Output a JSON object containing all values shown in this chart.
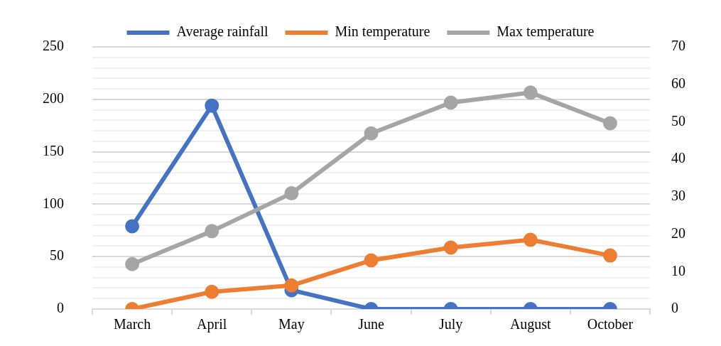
{
  "chart_data": {
    "type": "line",
    "categories": [
      "March",
      "April",
      "May",
      "June",
      "July",
      "August",
      "October"
    ],
    "series": [
      {
        "name": "Average rainfall",
        "color": "#4472c4",
        "values": [
          79,
          194,
          18,
          0,
          0,
          0,
          0
        ]
      },
      {
        "name": "Min temperature",
        "color": "#ed7d31",
        "axis": "y2",
        "values": [
          0,
          4.6,
          6.3,
          13,
          16.4,
          18.5,
          14.3
        ]
      },
      {
        "name": "Max temperature",
        "color": "#a5a5a5",
        "axis": "y2",
        "values": [
          12,
          20.8,
          30.9,
          46.9,
          55.1,
          57.8,
          49.6
        ]
      }
    ],
    "ylim": [
      0,
      250
    ],
    "yticks": [
      0,
      {
        "value": 10,
        "label": null
      },
      {
        "value": 20,
        "label": null
      },
      {
        "value": 30,
        "label": null
      },
      {
        "value": 40,
        "label": null
      },
      50,
      {
        "value": 60,
        "label": null
      },
      {
        "value": 70,
        "label": null
      },
      {
        "value": 80,
        "label": null
      },
      {
        "value": 90,
        "label": null
      },
      100,
      {
        "value": 110,
        "label": null
      },
      {
        "value": 120,
        "label": null
      },
      {
        "value": 130,
        "label": null
      },
      {
        "value": 140,
        "label": null
      },
      150,
      {
        "value": 160,
        "label": null
      },
      {
        "value": 170,
        "label": null
      },
      {
        "value": 180,
        "label": null
      },
      {
        "value": 190,
        "label": null
      },
      200,
      {
        "value": 210,
        "label": null
      },
      {
        "value": 220,
        "label": null
      },
      {
        "value": 230,
        "label": null
      },
      {
        "value": 240,
        "label": null
      },
      250
    ],
    "y2lim": [
      0,
      70
    ],
    "y2ticks": [
      0,
      10,
      20,
      30,
      40,
      50,
      60,
      70
    ],
    "grid": "y",
    "legend": "top",
    "marker": "circle",
    "line_style": "solid"
  }
}
